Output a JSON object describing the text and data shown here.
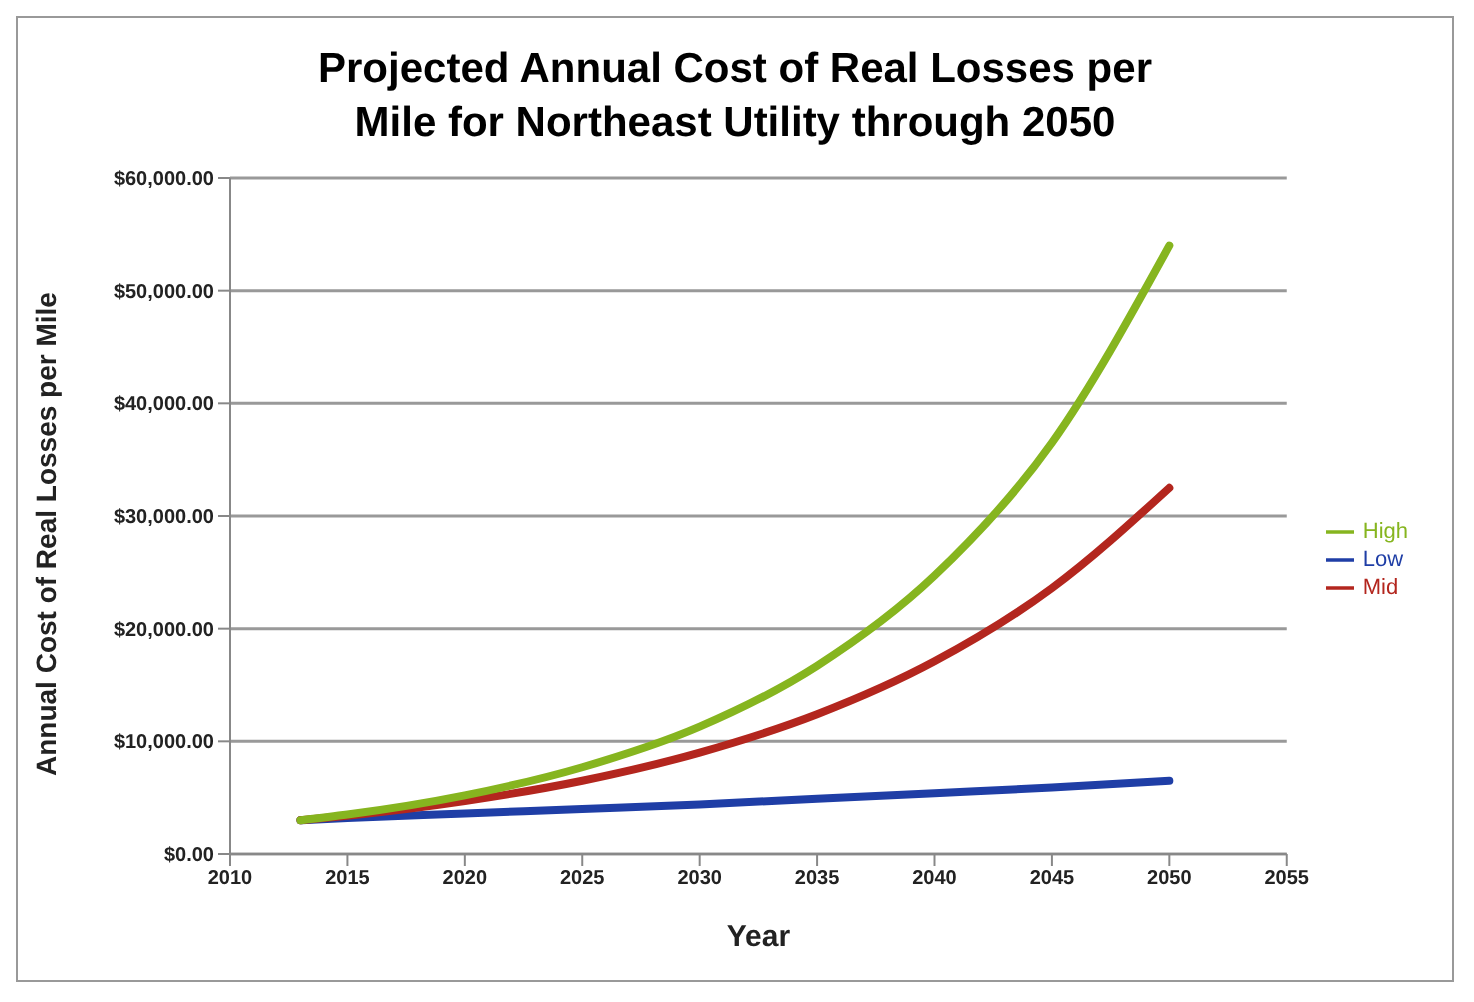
{
  "chart_data": {
    "type": "line",
    "title": "Projected Annual Cost of Real Losses per Mile for Northeast Utility through 2050",
    "xlabel": "Year",
    "ylabel": "Annual Cost of Real Losses per Mile",
    "x": [
      2013,
      2015,
      2020,
      2025,
      2030,
      2035,
      2040,
      2045,
      2050
    ],
    "series": [
      {
        "name": "Low",
        "color": "#1f3ea6",
        "values": [
          3000,
          3200,
          3600,
          4000,
          4400,
          4900,
          5400,
          5900,
          6500
        ]
      },
      {
        "name": "Mid",
        "color": "#b3261e",
        "values": [
          3000,
          3400,
          4700,
          6500,
          9000,
          12400,
          17100,
          23600,
          32500
        ]
      },
      {
        "name": "High",
        "color": "#86b51f",
        "values": [
          3000,
          3500,
          5200,
          7700,
          11300,
          16700,
          24700,
          36500,
          54000
        ]
      }
    ],
    "xlim": [
      2010,
      2055
    ],
    "xticks": [
      2010,
      2015,
      2020,
      2025,
      2030,
      2035,
      2040,
      2045,
      2050,
      2055
    ],
    "ylim": [
      0,
      60000
    ],
    "yticks": [
      {
        "value": 0,
        "label": "$0.00"
      },
      {
        "value": 10000,
        "label": "$10,000.00"
      },
      {
        "value": 20000,
        "label": "$20,000.00"
      },
      {
        "value": 30000,
        "label": "$30,000.00"
      },
      {
        "value": 40000,
        "label": "$40,000.00"
      },
      {
        "value": 50000,
        "label": "$50,000.00"
      },
      {
        "value": 60000,
        "label": "$60,000.00"
      }
    ],
    "grid": "y",
    "legend": "right",
    "marker": "none",
    "line_style": "solid"
  }
}
